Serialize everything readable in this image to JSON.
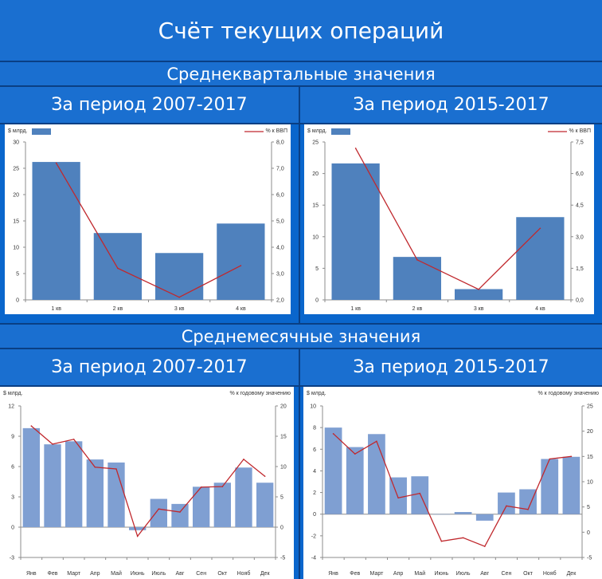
{
  "title": "Счёт текущих операций",
  "sections": [
    {
      "heading": "Среднеквартальные значения",
      "panels": [
        {
          "heading": "За период 2007-2017"
        },
        {
          "heading": "За период 2015-2017"
        }
      ]
    },
    {
      "heading": "Среднемесячные значения",
      "panels": [
        {
          "heading": "За период 2007-2017"
        },
        {
          "heading": "За период 2015-2017"
        }
      ]
    }
  ],
  "colors": {
    "bar_quarter": "#4f81bd",
    "bar_month": "#7f9fd2",
    "line": "#c0282d",
    "band": "#1a6fd0",
    "page": "#0a66cc"
  },
  "chart_data": [
    {
      "type": "bar",
      "title": "",
      "ylabel": "$ млрд.",
      "y2label": "% к ВВП",
      "legend": "top",
      "categories": [
        "1 кв",
        "2 кв",
        "3 кв",
        "4 кв"
      ],
      "ylim": [
        0,
        30
      ],
      "yticks": [
        0,
        5,
        10,
        15,
        20,
        25,
        30
      ],
      "yticklabels": [
        "0",
        "5",
        "10",
        "15",
        "20",
        "25",
        "30"
      ],
      "y2lim": [
        2.0,
        8.0
      ],
      "y2ticks": [
        2,
        3,
        4,
        5,
        6,
        7,
        8
      ],
      "y2ticklabels": [
        "2,0",
        "3,0",
        "4,0",
        "5,0",
        "6,0",
        "7,0",
        "8,0"
      ],
      "series": [
        {
          "name": "",
          "type": "bar",
          "axis": "left",
          "values": [
            26.2,
            12.7,
            8.9,
            14.5
          ]
        },
        {
          "name": "% к ВВП",
          "type": "line",
          "axis": "right",
          "values": [
            7.2,
            3.2,
            2.1,
            3.3
          ]
        }
      ]
    },
    {
      "type": "bar",
      "title": "",
      "ylabel": "$ млрд.",
      "y2label": "% к ВВП",
      "legend": "top",
      "categories": [
        "1 кв",
        "2 кв",
        "3 кв",
        "4 кв"
      ],
      "ylim": [
        0,
        25
      ],
      "yticks": [
        0,
        5,
        10,
        15,
        20,
        25
      ],
      "yticklabels": [
        "0",
        "5",
        "10",
        "15",
        "20",
        "25"
      ],
      "y2lim": [
        0,
        7.5
      ],
      "y2ticks": [
        0,
        1.5,
        3,
        4.5,
        6,
        7.5
      ],
      "y2ticklabels": [
        "0,0",
        "1,5",
        "3,0",
        "4,5",
        "6,0",
        "7,5"
      ],
      "series": [
        {
          "name": "",
          "type": "bar",
          "axis": "left",
          "values": [
            21.6,
            6.8,
            1.7,
            13.1
          ]
        },
        {
          "name": "% к ВВП",
          "type": "line",
          "axis": "right",
          "values": [
            7.2,
            1.9,
            0.5,
            3.4
          ]
        }
      ]
    },
    {
      "type": "bar",
      "title": "",
      "ylabel": "$ млрд.",
      "y2label": "% к годовому значению",
      "legend": "none",
      "categories": [
        "Янв",
        "Фев",
        "Март",
        "Апр",
        "Май",
        "Июнь",
        "Июль",
        "Авг",
        "Сен",
        "Окт",
        "Нояб",
        "Дек"
      ],
      "ylim": [
        -3,
        12
      ],
      "yticks": [
        -3,
        0,
        3,
        6,
        9,
        12
      ],
      "yticklabels": [
        "-3",
        "0",
        "3",
        "6",
        "9",
        "12"
      ],
      "y2lim": [
        -5,
        20
      ],
      "y2ticks": [
        -5,
        0,
        5,
        10,
        15,
        20
      ],
      "y2ticklabels": [
        "-5",
        "0",
        "5",
        "10",
        "15",
        "20"
      ],
      "series": [
        {
          "name": "",
          "type": "bar",
          "axis": "left",
          "values": [
            9.8,
            8.2,
            8.5,
            6.7,
            6.4,
            -0.3,
            2.8,
            2.3,
            4.0,
            4.4,
            5.9,
            4.4
          ]
        },
        {
          "name": "",
          "type": "line",
          "axis": "right",
          "values": [
            16.7,
            13.7,
            14.5,
            9.9,
            9.6,
            -1.5,
            3.0,
            2.5,
            6.6,
            6.7,
            11.2,
            8.4
          ]
        }
      ]
    },
    {
      "type": "bar",
      "title": "",
      "ylabel": "$ млрд.",
      "y2label": "% к годовому значению",
      "legend": "none",
      "categories": [
        "Янв",
        "Фев",
        "Март",
        "Апр",
        "Май",
        "Июнь",
        "Июль",
        "Авг",
        "Сен",
        "Окт",
        "Нояб",
        "Дек"
      ],
      "ylim": [
        -4,
        10
      ],
      "yticks": [
        -4,
        -2,
        0,
        2,
        4,
        6,
        8,
        10
      ],
      "yticklabels": [
        "-4",
        "-2",
        "0",
        "2",
        "4",
        "6",
        "8",
        "10"
      ],
      "y2lim": [
        -5,
        25
      ],
      "y2ticks": [
        -5,
        0,
        5,
        10,
        15,
        20,
        25
      ],
      "y2ticklabels": [
        "-5",
        "0",
        "5",
        "10",
        "15",
        "20",
        "25"
      ],
      "series": [
        {
          "name": "",
          "type": "bar",
          "axis": "left",
          "values": [
            8.0,
            6.2,
            7.4,
            3.4,
            3.5,
            0.0,
            0.2,
            -0.6,
            2.0,
            2.3,
            5.1,
            5.3
          ]
        },
        {
          "name": "",
          "type": "line",
          "axis": "right",
          "values": [
            19.5,
            15.5,
            18.0,
            6.8,
            7.7,
            -1.8,
            -1.1,
            -2.8,
            5.2,
            4.5,
            14.5,
            15.0
          ]
        }
      ]
    }
  ]
}
